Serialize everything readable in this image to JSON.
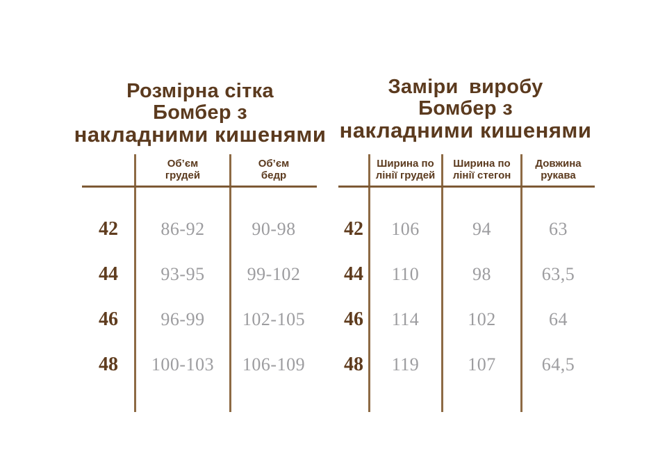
{
  "colors": {
    "title_brown": "#5b3a1e",
    "size_brown": "#5f3c1e",
    "rule_brown": "#7d5935",
    "divider_brown": "#8d6a44",
    "value_gray": "#9c9c9f",
    "background": "#ffffff"
  },
  "left_table": {
    "title_lines": [
      "Розмірна сітка",
      "Бомбер з",
      "накладними кишенями"
    ],
    "columns": [
      {
        "line1": "Об’єм",
        "line2": "грудей"
      },
      {
        "line1": "Об’єм",
        "line2": "бедр"
      }
    ],
    "rows": [
      {
        "size": "42",
        "chest": "86-92",
        "hips": "90-98"
      },
      {
        "size": "44",
        "chest": "93-95",
        "hips": "99-102"
      },
      {
        "size": "46",
        "chest": "96-99",
        "hips": "102-105"
      },
      {
        "size": "48",
        "chest": "100-103",
        "hips": "106-109"
      }
    ]
  },
  "right_table": {
    "title_lines": [
      "Заміри  виробу",
      "Бомбер з",
      "накладними кишенями"
    ],
    "columns": [
      {
        "line1": "Ширина по",
        "line2": "лінії грудей"
      },
      {
        "line1": "Ширина по",
        "line2": "лінії стегон"
      },
      {
        "line1": "Довжина",
        "line2": "рукава"
      }
    ],
    "rows": [
      {
        "size": "42",
        "chest_width": "106",
        "hip_width": "94",
        "sleeve": "63"
      },
      {
        "size": "44",
        "chest_width": "110",
        "hip_width": "98",
        "sleeve": "63,5"
      },
      {
        "size": "46",
        "chest_width": "114",
        "hip_width": "102",
        "sleeve": "64"
      },
      {
        "size": "48",
        "chest_width": "119",
        "hip_width": "107",
        "sleeve": "64,5"
      }
    ]
  }
}
